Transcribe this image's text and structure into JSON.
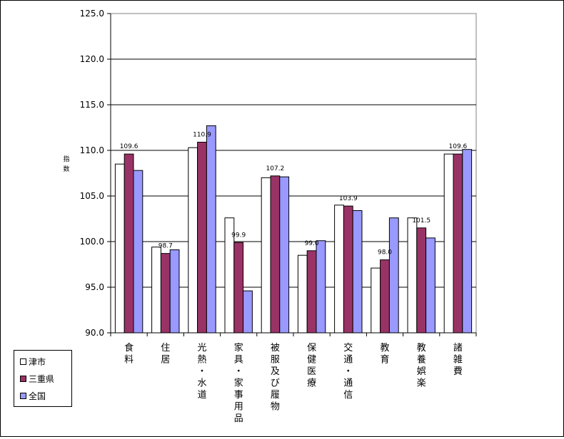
{
  "chart_data": {
    "type": "bar",
    "ylabel": "指数",
    "ylim": [
      90.0,
      125.0
    ],
    "ytick_step": 5,
    "yticks": [
      "90.0",
      "95.0",
      "100.0",
      "105.0",
      "110.0",
      "115.0",
      "120.0",
      "125.0"
    ],
    "grid": true,
    "legend_position": "bottom-left",
    "categories": [
      [
        "食",
        "料"
      ],
      [
        "住",
        "居"
      ],
      [
        "光",
        "熱",
        "・",
        "水",
        "道"
      ],
      [
        "家",
        "具",
        "・",
        "家",
        "事",
        "用",
        "品"
      ],
      [
        "被",
        "服",
        "及",
        "び",
        "履",
        "物"
      ],
      [
        "保",
        "健",
        "医",
        "療"
      ],
      [
        "交",
        "通",
        "・",
        "通",
        "信"
      ],
      [
        "教",
        "育"
      ],
      [
        "教",
        "養",
        "娯",
        "楽"
      ],
      [
        "諸",
        "雑",
        "費"
      ]
    ],
    "series": [
      {
        "name": "津市",
        "color": "#ffffff",
        "values": [
          108.5,
          99.4,
          110.3,
          102.6,
          107.0,
          98.5,
          104.0,
          97.1,
          102.6,
          109.6
        ]
      },
      {
        "name": "三重県",
        "color": "#993366",
        "values": [
          109.6,
          98.7,
          110.9,
          99.9,
          107.2,
          99.0,
          103.9,
          98.0,
          101.5,
          109.6
        ]
      },
      {
        "name": "全国",
        "color": "#9999ff",
        "values": [
          107.8,
          99.1,
          112.7,
          94.6,
          107.1,
          100.1,
          103.4,
          102.6,
          100.4,
          110.1
        ]
      }
    ],
    "data_labels": [
      "109.6",
      "98.7",
      "110.9",
      "99.9",
      "107.2",
      "99.0",
      "103.9",
      "98.0",
      "101.5",
      "109.6"
    ]
  }
}
